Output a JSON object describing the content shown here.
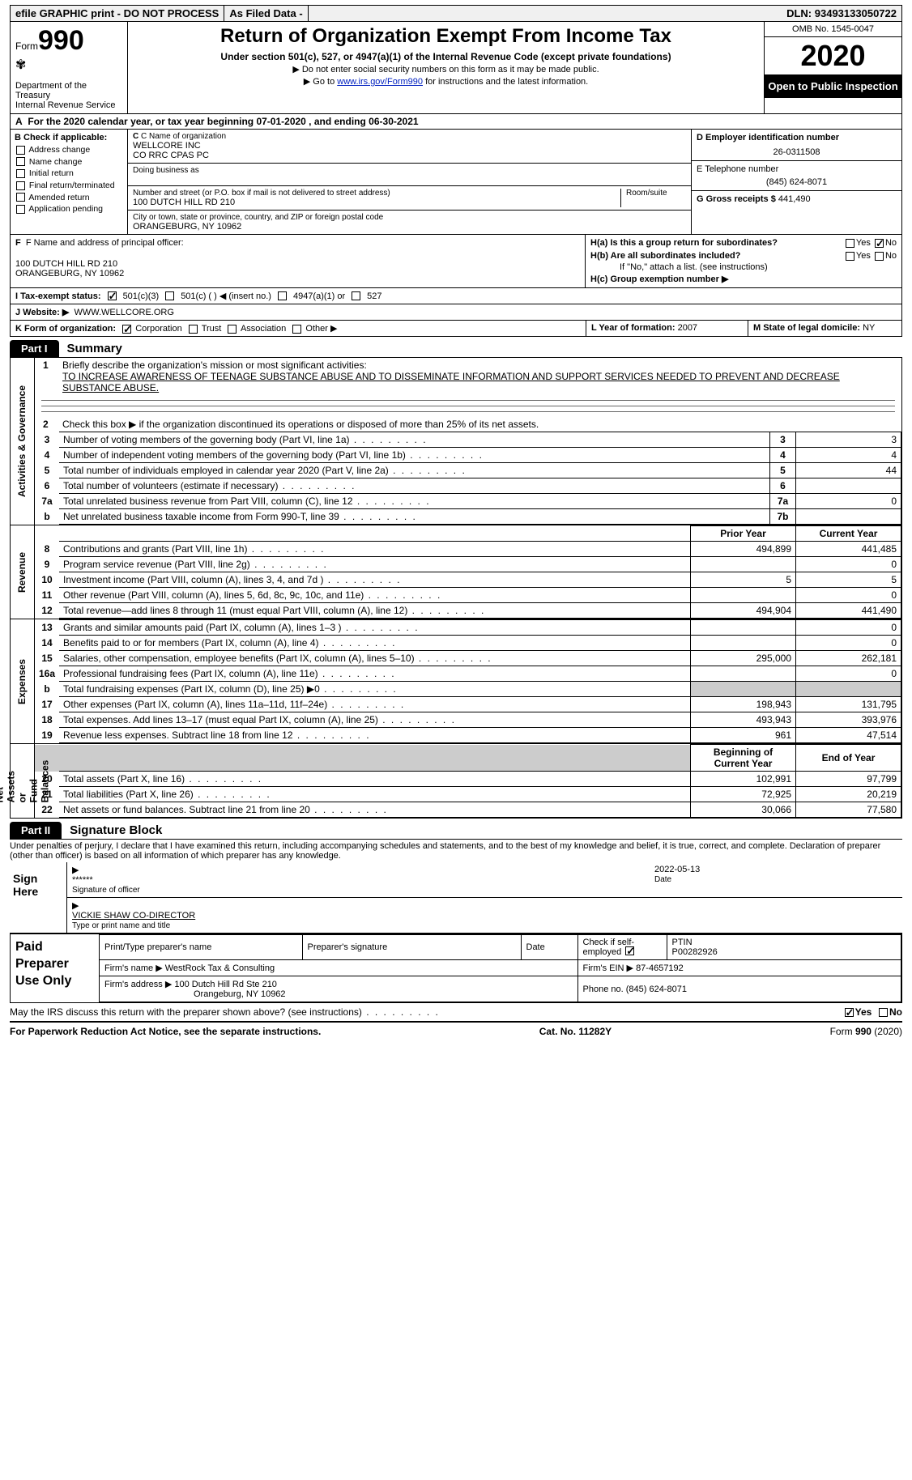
{
  "topbar": {
    "efile": "efile GRAPHIC print - DO NOT PROCESS",
    "asfiled": "As Filed Data -",
    "dln_label": "DLN:",
    "dln": "93493133050722"
  },
  "header": {
    "form_label": "Form",
    "form_no": "990",
    "dept": "Department of the Treasury\nInternal Revenue Service",
    "title": "Return of Organization Exempt From Income Tax",
    "sub": "Under section 501(c), 527, or 4947(a)(1) of the Internal Revenue Code (except private foundations)",
    "note1": "▶ Do not enter social security numbers on this form as it may be made public.",
    "note2_pre": "▶ Go to ",
    "note2_link": "www.irs.gov/Form990",
    "note2_post": " for instructions and the latest information.",
    "omb": "OMB No. 1545-0047",
    "year": "2020",
    "open": "Open to Public Inspection"
  },
  "rowA": {
    "label": "A",
    "text": "For the 2020 calendar year, or tax year beginning 07-01-2020  , and ending 06-30-2021"
  },
  "boxB": {
    "label": "B Check if applicable:",
    "items": [
      "Address change",
      "Name change",
      "Initial return",
      "Final return/terminated",
      "Amended return",
      "Application pending"
    ]
  },
  "boxC": {
    "name_label": "C Name of organization",
    "name1": "WELLCORE INC",
    "name2": "CO RRC CPAS PC",
    "dba_label": "Doing business as",
    "addr_label": "Number and street (or P.O. box if mail is not delivered to street address)",
    "room_label": "Room/suite",
    "addr": "100 DUTCH HILL RD 210",
    "city_label": "City or town, state or province, country, and ZIP or foreign postal code",
    "city": "ORANGEBURG, NY  10962"
  },
  "boxD": {
    "ein_label": "D Employer identification number",
    "ein": "26-0311508",
    "tel_label": "E Telephone number",
    "tel": "(845) 624-8071",
    "gross_label": "G Gross receipts $",
    "gross": "441,490"
  },
  "boxF": {
    "label": "F  Name and address of principal officer:",
    "addr1": "100 DUTCH HILL RD 210",
    "addr2": "ORANGEBURG, NY  10962"
  },
  "boxH": {
    "a": "H(a)  Is this a group return for subordinates?",
    "b": "H(b)  Are all subordinates included?",
    "note": "If \"No,\" attach a list. (see instructions)",
    "c": "H(c)  Group exemption number ▶"
  },
  "rowI": {
    "label": "I  Tax-exempt status:",
    "opts": [
      "501(c)(3)",
      "501(c) (  ) ◀ (insert no.)",
      "4947(a)(1) or",
      "527"
    ]
  },
  "rowJ": {
    "label": "J  Website: ▶",
    "val": "WWW.WELLCORE.ORG"
  },
  "rowL": {
    "label": "L Year of formation:",
    "val": "2007"
  },
  "rowM": {
    "label": "M State of legal domicile:",
    "val": "NY"
  },
  "rowK": {
    "label": "K Form of organization:",
    "opts": [
      "Corporation",
      "Trust",
      "Association",
      "Other ▶"
    ]
  },
  "partI": {
    "tab": "Part I",
    "title": "Summary"
  },
  "line1": {
    "num": "1",
    "label": "Briefly describe the organization's mission or most significant activities:",
    "text": "TO INCREASE AWARENESS OF TEENAGE SUBSTANCE ABUSE AND TO DISSEMINATE INFORMATION AND SUPPORT SERVICES NEEDED TO PREVENT AND DECREASE SUBSTANCE ABUSE."
  },
  "line2": {
    "num": "2",
    "text": "Check this box ▶     if the organization discontinued its operations or disposed of more than 25% of its net assets."
  },
  "govtable": [
    {
      "n": "3",
      "d": "Number of voting members of the governing body (Part VI, line 1a)",
      "k": "3",
      "v": "3"
    },
    {
      "n": "4",
      "d": "Number of independent voting members of the governing body (Part VI, line 1b)",
      "k": "4",
      "v": "4"
    },
    {
      "n": "5",
      "d": "Total number of individuals employed in calendar year 2020 (Part V, line 2a)",
      "k": "5",
      "v": "44"
    },
    {
      "n": "6",
      "d": "Total number of volunteers (estimate if necessary)",
      "k": "6",
      "v": ""
    },
    {
      "n": "7a",
      "d": "Total unrelated business revenue from Part VIII, column (C), line 12",
      "k": "7a",
      "v": "0"
    },
    {
      "n": "b",
      "d": "Net unrelated business taxable income from Form 990-T, line 39",
      "k": "7b",
      "v": ""
    }
  ],
  "yearcols": {
    "prior": "Prior Year",
    "current": "Current Year"
  },
  "revenue": [
    {
      "n": "8",
      "d": "Contributions and grants (Part VIII, line 1h)",
      "p": "494,899",
      "c": "441,485"
    },
    {
      "n": "9",
      "d": "Program service revenue (Part VIII, line 2g)",
      "p": "",
      "c": "0"
    },
    {
      "n": "10",
      "d": "Investment income (Part VIII, column (A), lines 3, 4, and 7d )",
      "p": "5",
      "c": "5"
    },
    {
      "n": "11",
      "d": "Other revenue (Part VIII, column (A), lines 5, 6d, 8c, 9c, 10c, and 11e)",
      "p": "",
      "c": "0"
    },
    {
      "n": "12",
      "d": "Total revenue—add lines 8 through 11 (must equal Part VIII, column (A), line 12)",
      "p": "494,904",
      "c": "441,490"
    }
  ],
  "expenses": [
    {
      "n": "13",
      "d": "Grants and similar amounts paid (Part IX, column (A), lines 1–3 )",
      "p": "",
      "c": "0"
    },
    {
      "n": "14",
      "d": "Benefits paid to or for members (Part IX, column (A), line 4)",
      "p": "",
      "c": "0"
    },
    {
      "n": "15",
      "d": "Salaries, other compensation, employee benefits (Part IX, column (A), lines 5–10)",
      "p": "295,000",
      "c": "262,181"
    },
    {
      "n": "16a",
      "d": "Professional fundraising fees (Part IX, column (A), line 11e)",
      "p": "",
      "c": "0"
    },
    {
      "n": "b",
      "d": "Total fundraising expenses (Part IX, column (D), line 25) ▶0",
      "p": "gray",
      "c": "gray"
    },
    {
      "n": "17",
      "d": "Other expenses (Part IX, column (A), lines 11a–11d, 11f–24e)",
      "p": "198,943",
      "c": "131,795"
    },
    {
      "n": "18",
      "d": "Total expenses. Add lines 13–17 (must equal Part IX, column (A), line 25)",
      "p": "493,943",
      "c": "393,976"
    },
    {
      "n": "19",
      "d": "Revenue less expenses. Subtract line 18 from line 12",
      "p": "961",
      "c": "47,514"
    }
  ],
  "netcols": {
    "beg": "Beginning of Current Year",
    "end": "End of Year"
  },
  "net": [
    {
      "n": "20",
      "d": "Total assets (Part X, line 16)",
      "p": "102,991",
      "c": "97,799"
    },
    {
      "n": "21",
      "d": "Total liabilities (Part X, line 26)",
      "p": "72,925",
      "c": "20,219"
    },
    {
      "n": "22",
      "d": "Net assets or fund balances. Subtract line 21 from line 20",
      "p": "30,066",
      "c": "77,580"
    }
  ],
  "vtabs": {
    "gov": "Activities & Governance",
    "rev": "Revenue",
    "exp": "Expenses",
    "net": "Net Assets or\nFund Balances"
  },
  "partII": {
    "tab": "Part II",
    "title": "Signature Block"
  },
  "sig": {
    "decl": "Under penalties of perjury, I declare that I have examined this return, including accompanying schedules and statements, and to the best of my knowledge and belief, it is true, correct, and complete. Declaration of preparer (other than officer) is based on all information of which preparer has any knowledge.",
    "here": "Sign Here",
    "stars": "******",
    "sig_label": "Signature of officer",
    "date": "2022-05-13",
    "date_label": "Date",
    "name": "VICKIE SHAW CO-DIRECTOR",
    "name_label": "Type or print name and title"
  },
  "paid": {
    "label": "Paid Preparer Use Only",
    "h": [
      "Print/Type preparer's name",
      "Preparer's signature",
      "Date"
    ],
    "check": "Check        if self-employed",
    "ptin_label": "PTIN",
    "ptin": "P00282926",
    "firm_label": "Firm's name   ▶",
    "firm": "WestRock Tax & Consulting",
    "ein_label": "Firm's EIN ▶",
    "ein": "87-4657192",
    "addr_label": "Firm's address ▶",
    "addr1": "100 Dutch Hill Rd Ste 210",
    "addr2": "Orangeburg, NY  10962",
    "phone_label": "Phone no.",
    "phone": "(845) 624-8071"
  },
  "discuss": "May the IRS discuss this return with the preparer shown above? (see instructions)",
  "footer": {
    "left": "For Paperwork Reduction Act Notice, see the separate instructions.",
    "mid": "Cat. No. 11282Y",
    "right": "Form 990 (2020)"
  }
}
